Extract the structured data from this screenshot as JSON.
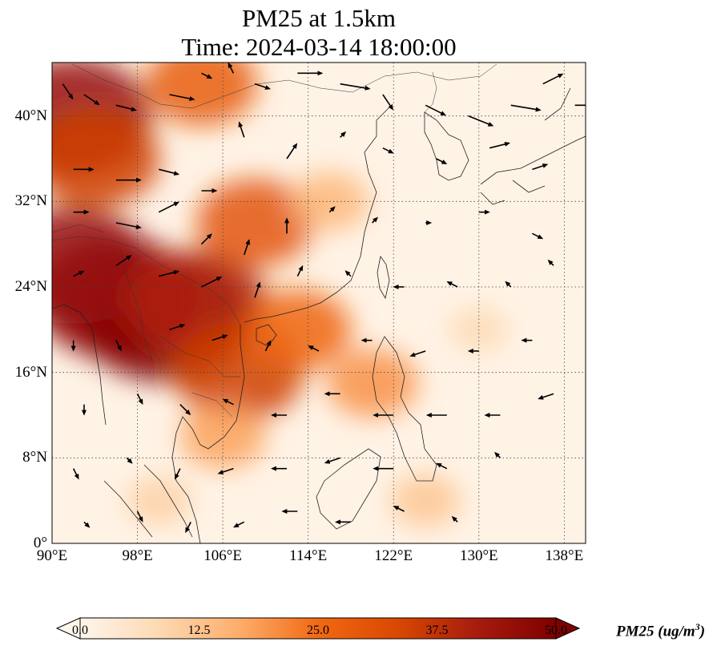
{
  "title": {
    "line1": "PM25 at 1.5km",
    "line2": "Time: 2024-03-14 18:00:00"
  },
  "map": {
    "lon_range": [
      90,
      140
    ],
    "lat_range": [
      0,
      45
    ],
    "lon_ticks": [
      {
        "value": 90,
        "label": "90°E"
      },
      {
        "value": 98,
        "label": "98°E"
      },
      {
        "value": 106,
        "label": "106°E"
      },
      {
        "value": 114,
        "label": "114°E"
      },
      {
        "value": 122,
        "label": "122°E"
      },
      {
        "value": 130,
        "label": "130°E"
      },
      {
        "value": 138,
        "label": "138°E"
      }
    ],
    "lat_ticks": [
      {
        "value": 0,
        "label": "0°"
      },
      {
        "value": 8,
        "label": "8°N"
      },
      {
        "value": 16,
        "label": "16°N"
      },
      {
        "value": 24,
        "label": "24°N"
      },
      {
        "value": 32,
        "label": "32°N"
      },
      {
        "value": 40,
        "label": "40°N"
      }
    ],
    "gridlines": true,
    "field": "PM25",
    "units": "ug/m3"
  },
  "colorbar": {
    "min": 0,
    "max": 50,
    "ticks": [
      "0.0",
      "12.5",
      "25.0",
      "37.5",
      "50.0"
    ],
    "label_main": "PM25 (ug/m",
    "label_sup": "3",
    "label_end": ")",
    "colors": [
      "#fff5eb",
      "#fdd9b3",
      "#fdae6b",
      "#f16913",
      "#d94801",
      "#a61c0e",
      "#7f0000"
    ],
    "extend": "both"
  },
  "pm25_hotspots": [
    {
      "lon": 100.5,
      "lat": 21,
      "value": 50
    },
    {
      "lon": 96,
      "lat": 23,
      "value": 48
    },
    {
      "lon": 92,
      "lat": 26,
      "value": 45
    },
    {
      "lon": 103.5,
      "lat": 22.5,
      "value": 40
    },
    {
      "lon": 107.5,
      "lat": 16,
      "value": 35
    },
    {
      "lon": 109,
      "lat": 30,
      "value": 30
    },
    {
      "lon": 92,
      "lat": 40,
      "value": 45
    },
    {
      "lon": 94,
      "lat": 36,
      "value": 35
    },
    {
      "lon": 104,
      "lat": 43,
      "value": 28
    },
    {
      "lon": 113,
      "lat": 20,
      "value": 26
    },
    {
      "lon": 106,
      "lat": 10,
      "value": 18
    },
    {
      "lon": 120,
      "lat": 15,
      "value": 20
    },
    {
      "lon": 116,
      "lat": 32,
      "value": 15
    },
    {
      "lon": 100,
      "lat": 4,
      "value": 10
    },
    {
      "lon": 130,
      "lat": 20,
      "value": 8
    },
    {
      "lon": 125,
      "lat": 4,
      "value": 12
    }
  ],
  "wind_vectors": [
    {
      "lon": 91,
      "lat": 43,
      "u": 2,
      "v": -3
    },
    {
      "lon": 93,
      "lat": 42,
      "u": 3,
      "v": -2
    },
    {
      "lon": 96,
      "lat": 41,
      "u": 4,
      "v": -1
    },
    {
      "lon": 101,
      "lat": 42,
      "u": 5,
      "v": -1
    },
    {
      "lon": 104,
      "lat": 44,
      "u": 2,
      "v": -1
    },
    {
      "lon": 107,
      "lat": 44,
      "u": -1,
      "v": 2
    },
    {
      "lon": 109,
      "lat": 43,
      "u": 3,
      "v": -1
    },
    {
      "lon": 113,
      "lat": 44,
      "u": 5,
      "v": 0
    },
    {
      "lon": 117,
      "lat": 43,
      "u": 6,
      "v": -1
    },
    {
      "lon": 121,
      "lat": 42,
      "u": 2,
      "v": -3
    },
    {
      "lon": 125,
      "lat": 41,
      "u": 4,
      "v": -2
    },
    {
      "lon": 129,
      "lat": 40,
      "u": 5,
      "v": -2
    },
    {
      "lon": 133,
      "lat": 41,
      "u": 6,
      "v": -1
    },
    {
      "lon": 136,
      "lat": 43,
      "u": 4,
      "v": 2
    },
    {
      "lon": 139,
      "lat": 41,
      "u": 3,
      "v": 0
    },
    {
      "lon": 92,
      "lat": 35,
      "u": 4,
      "v": 0
    },
    {
      "lon": 96,
      "lat": 34,
      "u": 5,
      "v": 0
    },
    {
      "lon": 100,
      "lat": 35,
      "u": 4,
      "v": -1
    },
    {
      "lon": 104,
      "lat": 33,
      "u": 3,
      "v": 0
    },
    {
      "lon": 108,
      "lat": 38,
      "u": -1,
      "v": 3
    },
    {
      "lon": 112,
      "lat": 36,
      "u": 2,
      "v": 3
    },
    {
      "lon": 117,
      "lat": 38,
      "u": 1,
      "v": 1
    },
    {
      "lon": 121,
      "lat": 37,
      "u": 2,
      "v": -1
    },
    {
      "lon": 126,
      "lat": 36,
      "u": 2,
      "v": -1
    },
    {
      "lon": 131,
      "lat": 37,
      "u": 4,
      "v": 1
    },
    {
      "lon": 135,
      "lat": 35,
      "u": 3,
      "v": 1
    },
    {
      "lon": 92,
      "lat": 31,
      "u": 3,
      "v": 0
    },
    {
      "lon": 96,
      "lat": 30,
      "u": 5,
      "v": -1
    },
    {
      "lon": 100,
      "lat": 31,
      "u": 4,
      "v": 2
    },
    {
      "lon": 104,
      "lat": 28,
      "u": 2,
      "v": 2
    },
    {
      "lon": 108,
      "lat": 27,
      "u": 1,
      "v": 3
    },
    {
      "lon": 112,
      "lat": 29,
      "u": 0,
      "v": 3
    },
    {
      "lon": 116,
      "lat": 31,
      "u": 1,
      "v": 1
    },
    {
      "lon": 120,
      "lat": 30,
      "u": 1,
      "v": 1
    },
    {
      "lon": 125,
      "lat": 30,
      "u": 1,
      "v": 0
    },
    {
      "lon": 130,
      "lat": 31,
      "u": 2,
      "v": 0
    },
    {
      "lon": 135,
      "lat": 29,
      "u": 2,
      "v": -1
    },
    {
      "lon": 92,
      "lat": 25,
      "u": 2,
      "v": 1
    },
    {
      "lon": 96,
      "lat": 26,
      "u": 3,
      "v": 2
    },
    {
      "lon": 100,
      "lat": 25,
      "u": 4,
      "v": 1
    },
    {
      "lon": 104,
      "lat": 24,
      "u": 4,
      "v": 2
    },
    {
      "lon": 109,
      "lat": 23,
      "u": 1,
      "v": 3
    },
    {
      "lon": 113,
      "lat": 25,
      "u": 1,
      "v": 2
    },
    {
      "lon": 118,
      "lat": 25,
      "u": -1,
      "v": 1
    },
    {
      "lon": 123,
      "lat": 24,
      "u": -2,
      "v": 0
    },
    {
      "lon": 128,
      "lat": 24,
      "u": -2,
      "v": 1
    },
    {
      "lon": 133,
      "lat": 24,
      "u": -1,
      "v": 1
    },
    {
      "lon": 137,
      "lat": 26,
      "u": -1,
      "v": 1
    },
    {
      "lon": 92,
      "lat": 19,
      "u": 0,
      "v": -2
    },
    {
      "lon": 96,
      "lat": 19,
      "u": 1,
      "v": -2
    },
    {
      "lon": 101,
      "lat": 20,
      "u": 3,
      "v": 1
    },
    {
      "lon": 105,
      "lat": 19,
      "u": 3,
      "v": 1
    },
    {
      "lon": 110,
      "lat": 18,
      "u": 1,
      "v": 2
    },
    {
      "lon": 115,
      "lat": 18,
      "u": -2,
      "v": 1
    },
    {
      "lon": 120,
      "lat": 19,
      "u": -2,
      "v": 0
    },
    {
      "lon": 125,
      "lat": 18,
      "u": -3,
      "v": -1
    },
    {
      "lon": 130,
      "lat": 18,
      "u": -2,
      "v": 0
    },
    {
      "lon": 135,
      "lat": 19,
      "u": -2,
      "v": 0
    },
    {
      "lon": 93,
      "lat": 13,
      "u": 0,
      "v": -2
    },
    {
      "lon": 98,
      "lat": 14,
      "u": 1,
      "v": -2
    },
    {
      "lon": 102,
      "lat": 13,
      "u": 2,
      "v": -2
    },
    {
      "lon": 107,
      "lat": 13,
      "u": -2,
      "v": 1
    },
    {
      "lon": 112,
      "lat": 12,
      "u": -3,
      "v": 0
    },
    {
      "lon": 117,
      "lat": 14,
      "u": -3,
      "v": 0
    },
    {
      "lon": 122,
      "lat": 12,
      "u": -4,
      "v": 0
    },
    {
      "lon": 127,
      "lat": 12,
      "u": -4,
      "v": 0
    },
    {
      "lon": 132,
      "lat": 12,
      "u": -3,
      "v": 0
    },
    {
      "lon": 137,
      "lat": 14,
      "u": -3,
      "v": -1
    },
    {
      "lon": 92,
      "lat": 7,
      "u": 1,
      "v": -2
    },
    {
      "lon": 97,
      "lat": 8,
      "u": 1,
      "v": -1
    },
    {
      "lon": 102,
      "lat": 7,
      "u": -1,
      "v": -2
    },
    {
      "lon": 107,
      "lat": 7,
      "u": -3,
      "v": -1
    },
    {
      "lon": 112,
      "lat": 7,
      "u": -3,
      "v": 0
    },
    {
      "lon": 117,
      "lat": 8,
      "u": -3,
      "v": -1
    },
    {
      "lon": 122,
      "lat": 7,
      "u": -4,
      "v": 0
    },
    {
      "lon": 127,
      "lat": 7,
      "u": -2,
      "v": 1
    },
    {
      "lon": 132,
      "lat": 8,
      "u": -1,
      "v": 1
    },
    {
      "lon": 93,
      "lat": 2,
      "u": 1,
      "v": -1
    },
    {
      "lon": 98,
      "lat": 3,
      "u": 1,
      "v": -2
    },
    {
      "lon": 103,
      "lat": 2,
      "u": -1,
      "v": -2
    },
    {
      "lon": 108,
      "lat": 2,
      "u": -2,
      "v": -1
    },
    {
      "lon": 113,
      "lat": 3,
      "u": -3,
      "v": 0
    },
    {
      "lon": 118,
      "lat": 2,
      "u": -3,
      "v": 0
    },
    {
      "lon": 123,
      "lat": 3,
      "u": -2,
      "v": 1
    },
    {
      "lon": 128,
      "lat": 2,
      "u": -1,
      "v": 1
    }
  ]
}
